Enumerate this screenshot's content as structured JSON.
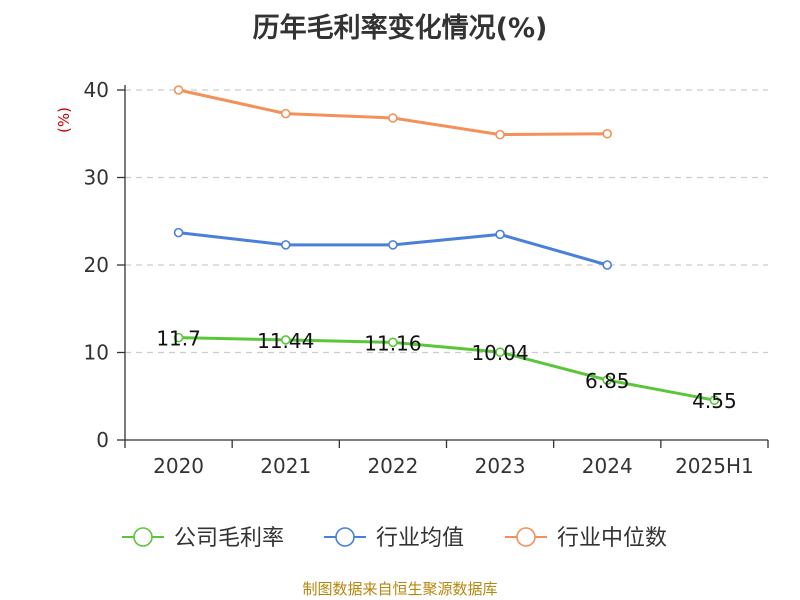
{
  "title": "历年毛利率变化情况(%)",
  "source": "制图数据来自恒生聚源数据库",
  "chart_data": {
    "type": "line",
    "title": "历年毛利率变化情况(%)",
    "ylabel": "(%)",
    "xlabel": "",
    "categories": [
      "2020",
      "2021",
      "2022",
      "2023",
      "2024",
      "2025H1"
    ],
    "ylim": [
      0,
      40
    ],
    "yticks": [
      0,
      10,
      20,
      30,
      40
    ],
    "grid": true,
    "legend_position": "bottom",
    "series": [
      {
        "name": "公司毛利率",
        "color": "#5ac73a",
        "values": [
          11.7,
          11.44,
          11.16,
          10.04,
          6.85,
          4.55
        ],
        "labels": [
          "11.7",
          "11.44",
          "11.16",
          "10.04",
          "6.85",
          "4.55"
        ]
      },
      {
        "name": "行业均值",
        "color": "#4a7fdc",
        "values": [
          23.7,
          22.3,
          22.3,
          23.5,
          20.0,
          null
        ]
      },
      {
        "name": "行业中位数",
        "color": "#f4905a",
        "values": [
          40.0,
          37.3,
          36.8,
          34.9,
          35.0,
          null
        ]
      }
    ]
  }
}
